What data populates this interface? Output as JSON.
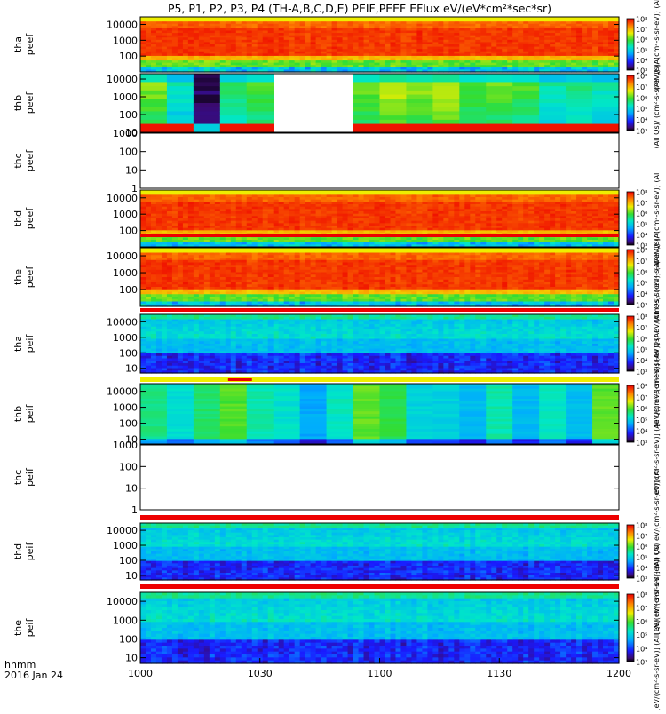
{
  "chart_data": {
    "type": "heatmap",
    "title": "P5, P1, P2, P3, P4 (TH-A,B,C,D,E) PEIF,PEEF EFlux eV/(eV*cm²*sec*sr)",
    "x_label_top": "hhmm",
    "x_label_bottom": "2016 Jan 24",
    "x_ticks": [
      "1000",
      "1030",
      "1100",
      "1130",
      "1200"
    ],
    "xlim_hhmm": [
      "1000",
      "1200"
    ],
    "y_scale": "log",
    "z_scale": "log",
    "colormap": "rainbow",
    "colorbar_ticks": [
      "10³",
      "10⁴",
      "10⁵",
      "10⁶",
      "10⁷",
      "10⁸"
    ],
    "colorbar_label_electrons": "(All Qs)/ (cm²-s-sr-eV)) (AI",
    "colorbar_label_ions": "[eV/(cm²-s-sr-eV)] (All Qs) eV/(cm²-s-sr-eV)) (AI",
    "panels": [
      {
        "name": "tha peef",
        "y_ticks": [
          "100",
          "1000",
          "10000"
        ],
        "has_data": true,
        "ylim": [
          10,
          30000
        ],
        "dominant_eflux_log": 7.3
      },
      {
        "name": "thb peef",
        "y_ticks": [
          "10",
          "100",
          "1000",
          "10000"
        ],
        "has_data": true,
        "ylim": [
          10,
          20000
        ],
        "gap_hhmm": [
          "1034",
          "1053"
        ],
        "dominant_eflux_log": 4.5
      },
      {
        "name": "thc peef",
        "y_ticks": [
          "1",
          "10",
          "100",
          "1000"
        ],
        "has_data": false,
        "ylim": [
          1,
          1000
        ]
      },
      {
        "name": "thd peef",
        "y_ticks": [
          "100",
          "1000",
          "10000"
        ],
        "has_data": true,
        "ylim": [
          10,
          30000
        ],
        "dominant_eflux_log": 7.2
      },
      {
        "name": "the peef",
        "y_ticks": [
          "100",
          "1000",
          "10000"
        ],
        "has_data": true,
        "ylim": [
          10,
          30000
        ],
        "dominant_eflux_log": 7.4
      },
      {
        "name": "tha peif",
        "y_ticks": [
          "10",
          "100",
          "1000",
          "10000"
        ],
        "has_data": true,
        "ylim": [
          5,
          30000
        ],
        "dominant_eflux_log": 4.2
      },
      {
        "name": "thb peif",
        "y_ticks": [
          "10",
          "100",
          "1000",
          "10000"
        ],
        "has_data": true,
        "ylim": [
          5,
          30000
        ],
        "dominant_eflux_log": 4.4
      },
      {
        "name": "thc peif",
        "y_ticks": [
          "1",
          "10",
          "100",
          "1000"
        ],
        "has_data": false,
        "ylim": [
          1,
          1000
        ]
      },
      {
        "name": "thd peif",
        "y_ticks": [
          "10",
          "100",
          "1000",
          "10000"
        ],
        "has_data": true,
        "ylim": [
          5,
          30000
        ],
        "dominant_eflux_log": 4.1
      },
      {
        "name": "the peif",
        "y_ticks": [
          "10",
          "100",
          "1000",
          "10000"
        ],
        "has_data": true,
        "ylim": [
          5,
          30000
        ],
        "dominant_eflux_log": 4.0
      }
    ]
  }
}
